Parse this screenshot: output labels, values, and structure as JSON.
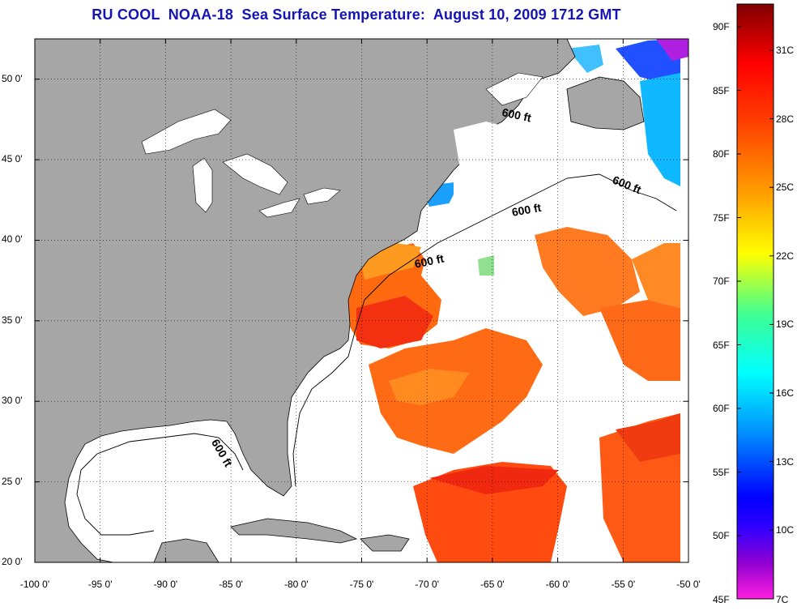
{
  "title": "RU COOL  NOAA-18  Sea Surface Temperature:  August 10, 2009 1712 GMT",
  "map": {
    "lon_range": [
      -100,
      -50
    ],
    "lat_range": [
      20,
      52.5
    ],
    "x_ticks": [
      "-100 0'",
      "-95 0'",
      "-90 0'",
      "-85 0'",
      "-80 0'",
      "-75 0'",
      "-70 0'",
      "-65 0'",
      "-60 0'",
      "-55 0'",
      "-50 0'"
    ],
    "y_ticks": [
      "50 0'",
      "45 0'",
      "40 0'",
      "35 0'",
      "30 0'",
      "25 0'",
      "20 0'"
    ],
    "grid": "dotted",
    "land_color": "#a6a6a6",
    "cloud_color": "#ffffff",
    "contour_labels": [
      "600 ft",
      "600 ft",
      "600 ft",
      "600 ft",
      "600 ft"
    ]
  },
  "colorbar": {
    "fahrenheit": [
      "90F",
      "85F",
      "80F",
      "75F",
      "70F",
      "65F",
      "60F",
      "55F",
      "50F",
      "45F"
    ],
    "celsius": [
      "31C",
      "28C",
      "25C",
      "22C",
      "19C",
      "16C",
      "13C",
      "10C",
      "7C"
    ],
    "colors": [
      "#ff00ff",
      "#8000c0",
      "#0000ff",
      "#00a0ff",
      "#00ffff",
      "#00ff80",
      "#ffff00",
      "#ffa000",
      "#ff4000",
      "#ff0000",
      "#a00000",
      "#800000"
    ]
  }
}
